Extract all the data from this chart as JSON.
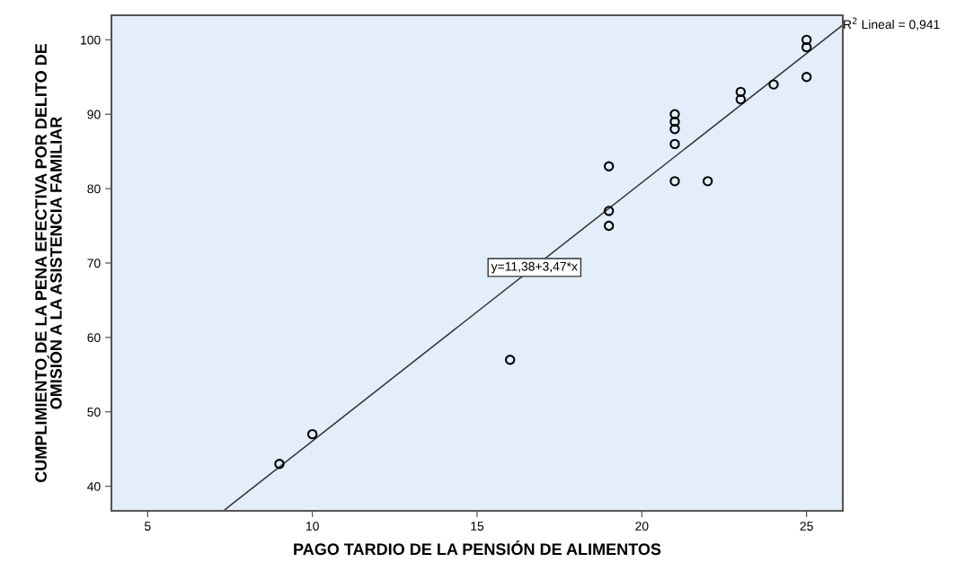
{
  "chart_data": {
    "type": "scatter",
    "xlabel": "PAGO TARDIO DE LA PENSIÓN DE ALIMENTOS",
    "ylabel": "CUMPLIMIENTO DE LA PENA EFECTIVA POR DELITO DE\nOMISIÓN A LA ASISTENCIA FAMILIAR",
    "xlim": [
      3.9,
      26.1
    ],
    "ylim": [
      36.7,
      103.3
    ],
    "xticks": [
      5,
      10,
      15,
      20,
      25
    ],
    "yticks": [
      40,
      50,
      60,
      70,
      80,
      90,
      100
    ],
    "grid": false,
    "marker": "circle",
    "series": [
      {
        "color": "#000000",
        "x": [
          9,
          10,
          16,
          19,
          19,
          19,
          21,
          21,
          21,
          21,
          21,
          22,
          23,
          23,
          24,
          25,
          25,
          25
        ],
        "values": [
          43,
          47,
          57,
          75,
          77,
          83,
          81,
          86,
          88,
          89,
          90,
          81,
          92,
          93,
          94,
          95,
          99,
          100
        ]
      },
      {
        "type": "line",
        "color": "#333333",
        "marker": "none",
        "line_style": "solid",
        "x": [
          7.3,
          26.1
        ],
        "values": [
          36.7,
          102.0
        ]
      }
    ],
    "annotations": [
      {
        "text": "y=11,38+3,47*x",
        "x": 16.74,
        "y": 69.4
      },
      {
        "text": "R$^{2}$ Lineal = 0,941",
        "x": 26.1,
        "y": 102.0
      }
    ]
  }
}
